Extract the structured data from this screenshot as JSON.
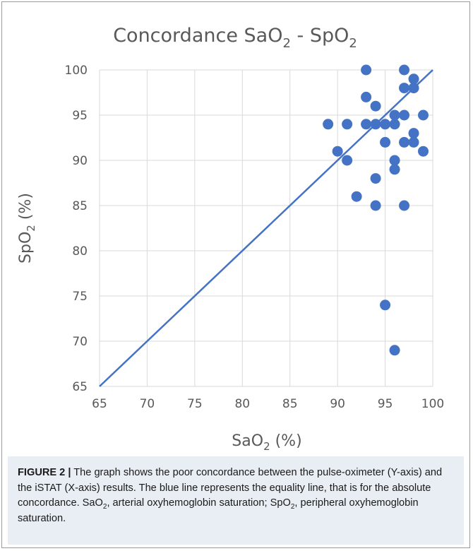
{
  "figure": {
    "caption_label": "FIGURE 2 |",
    "caption_part1": " The graph shows the poor concordance between the pulse-oximeter (Y-axis) and the iSTAT (X-axis) results. The blue line represents the equality line, that is for the absolute concordance. SaO",
    "caption_sub1": "2",
    "caption_part2": ", arterial oxyhemoglobin saturation; SpO",
    "caption_sub2": "2",
    "caption_part3": ", peripheral oxyhemoglobin saturation."
  },
  "colors": {
    "marker": "#4472c4",
    "equality_line": "#4472c4",
    "grid": "#d9d9d9",
    "text": "#595959",
    "caption_bg": "#e8eef3"
  },
  "chart_data": {
    "type": "scatter",
    "title_main": "Concordance SaO",
    "title_sub": "2",
    "title_tail": " - SpO",
    "title_sub2": "2",
    "xlabel_main": "SaO",
    "xlabel_sub": "2",
    "xlabel_tail": " (%)",
    "ylabel_main": "SpO",
    "ylabel_sub": "2",
    "ylabel_tail": " (%)",
    "xlim": [
      65,
      100
    ],
    "ylim": [
      65,
      100
    ],
    "xticks": [
      65,
      70,
      75,
      80,
      85,
      90,
      95,
      100
    ],
    "yticks": [
      65,
      70,
      75,
      80,
      85,
      90,
      95,
      100
    ],
    "grid": true,
    "equality_line": [
      [
        65,
        65
      ],
      [
        100,
        100
      ]
    ],
    "points": [
      [
        89,
        94
      ],
      [
        90,
        91
      ],
      [
        91,
        94
      ],
      [
        91,
        90
      ],
      [
        92,
        86
      ],
      [
        93,
        100
      ],
      [
        93,
        97
      ],
      [
        93,
        94
      ],
      [
        94,
        96
      ],
      [
        94,
        94
      ],
      [
        94,
        88
      ],
      [
        94,
        85
      ],
      [
        95,
        94
      ],
      [
        95,
        92
      ],
      [
        95,
        74
      ],
      [
        96,
        95
      ],
      [
        96,
        94
      ],
      [
        96,
        90
      ],
      [
        96,
        89
      ],
      [
        96,
        69
      ],
      [
        97,
        100
      ],
      [
        97,
        98
      ],
      [
        97,
        95
      ],
      [
        97,
        92
      ],
      [
        97,
        85
      ],
      [
        98,
        99
      ],
      [
        98,
        98
      ],
      [
        98,
        93
      ],
      [
        98,
        92
      ],
      [
        99,
        95
      ],
      [
        99,
        91
      ]
    ]
  }
}
